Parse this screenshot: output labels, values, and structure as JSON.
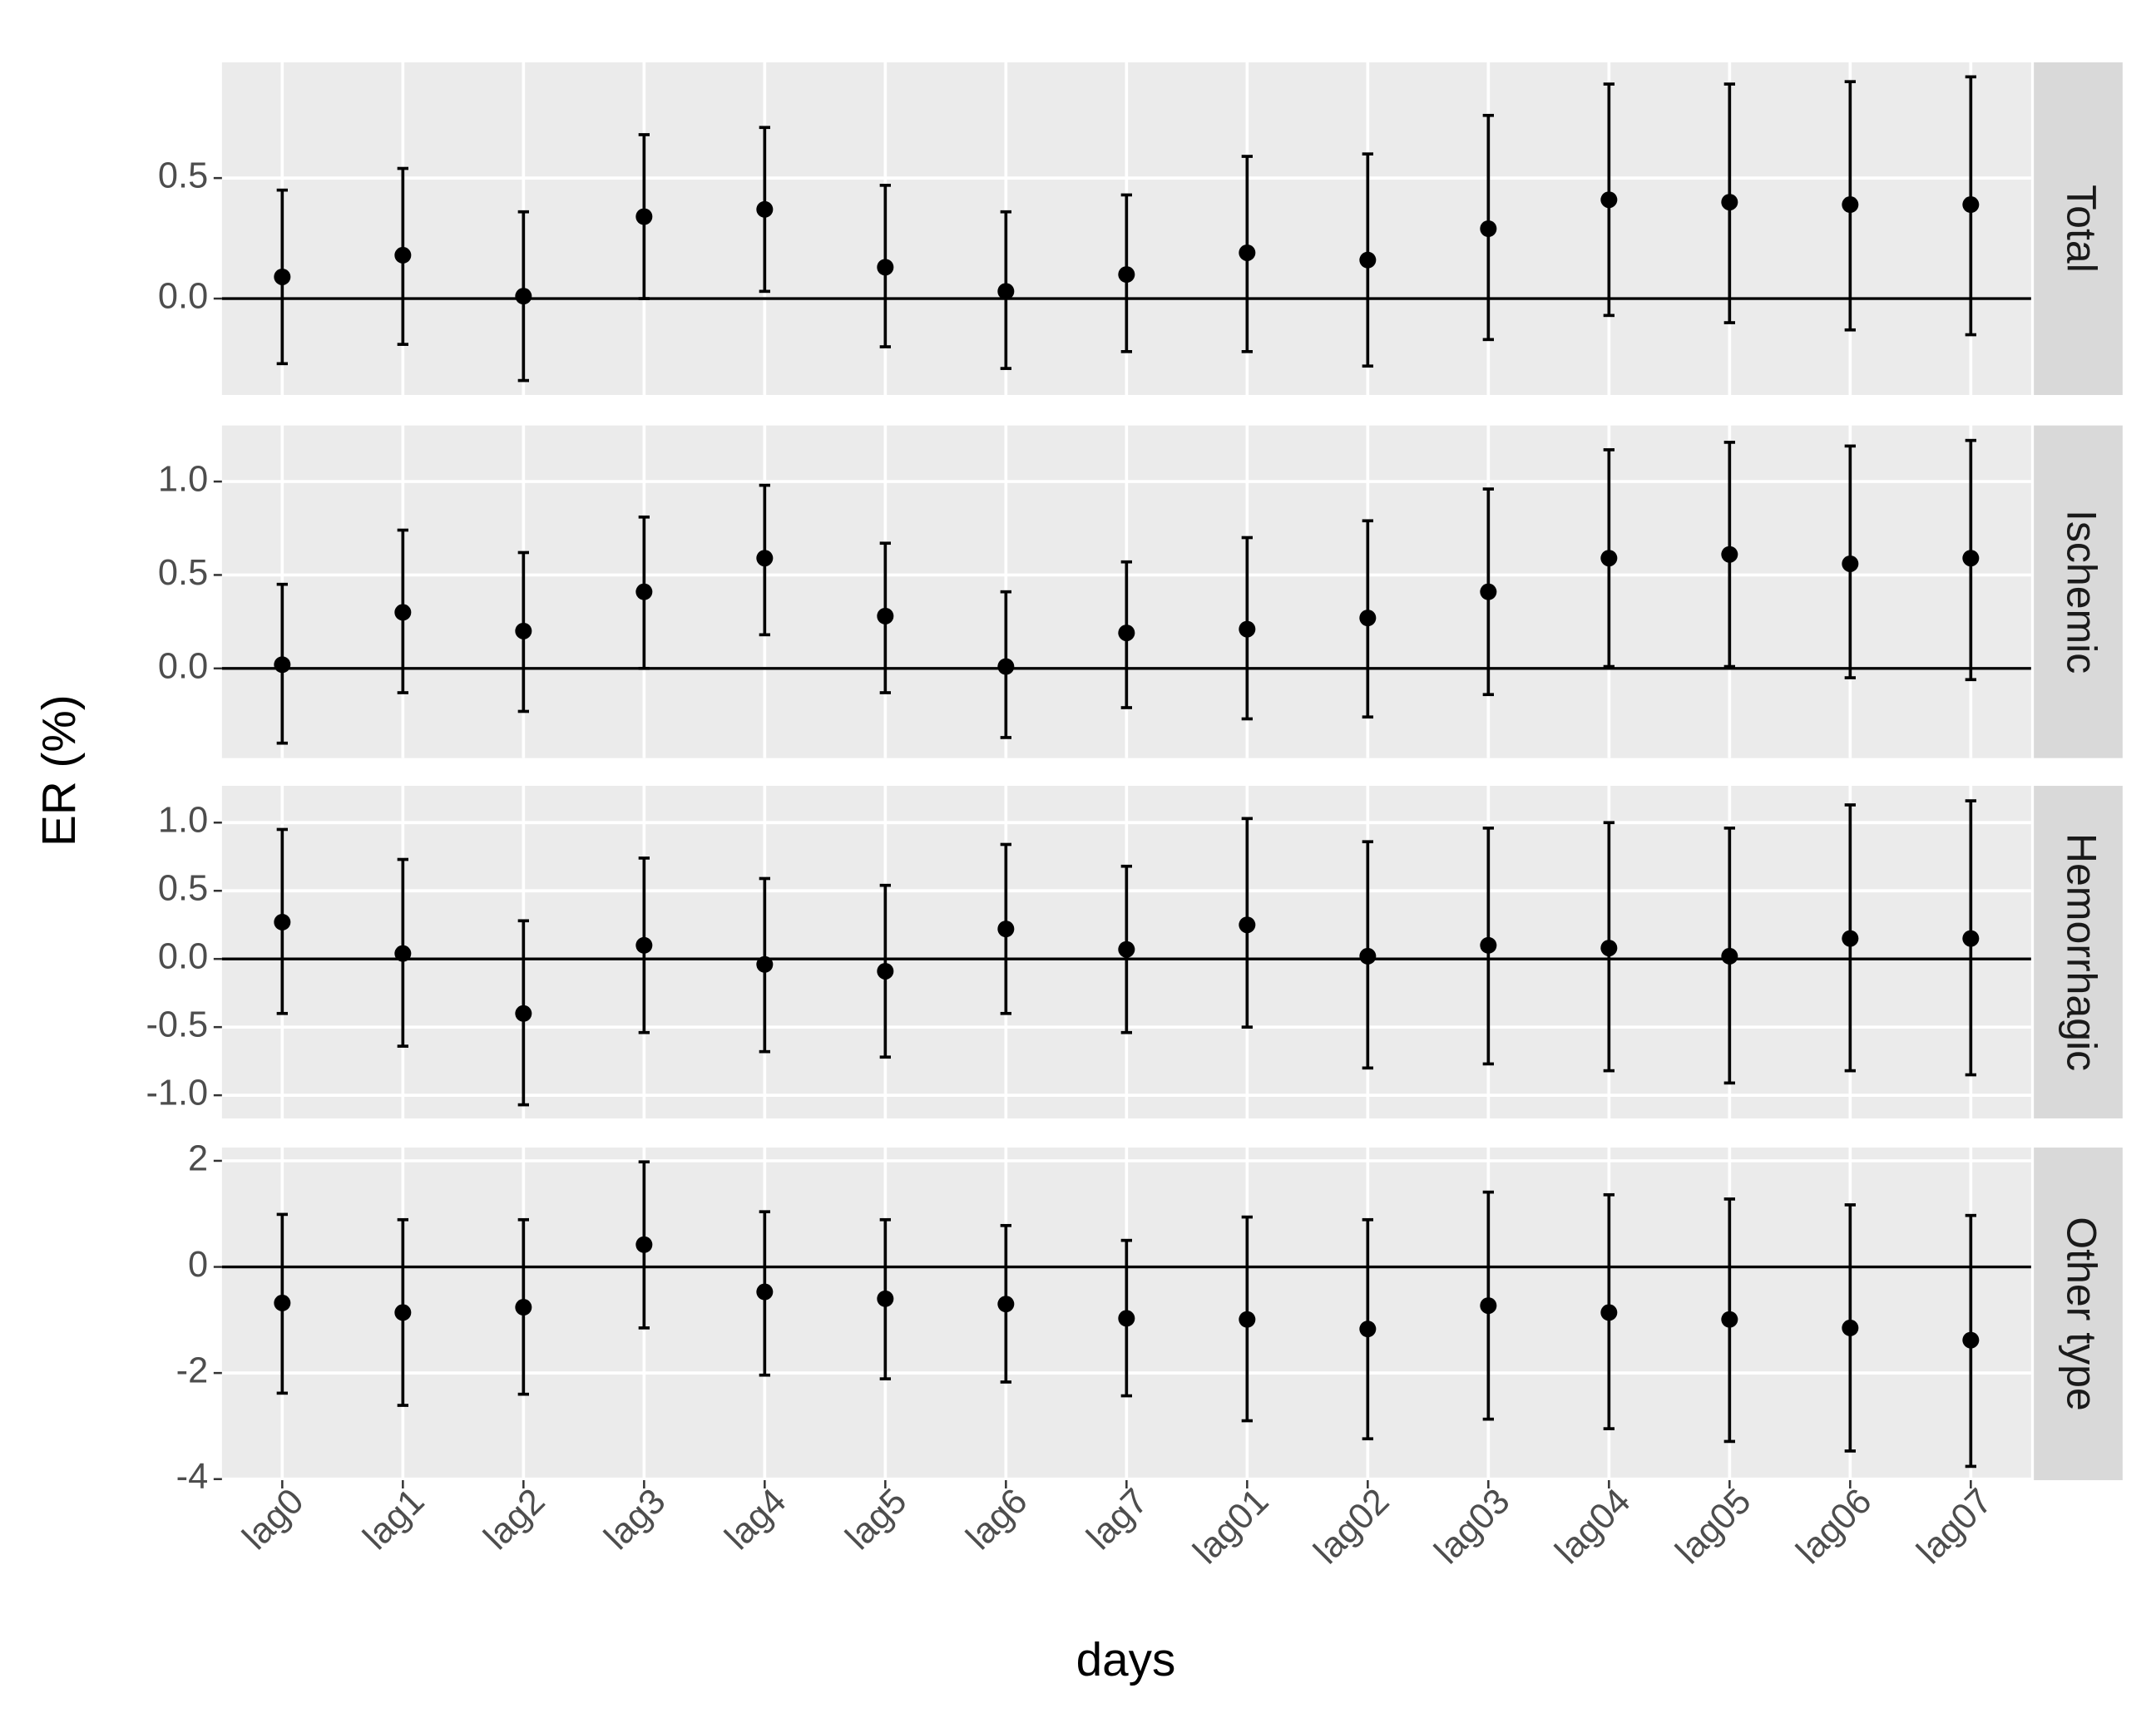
{
  "chart_data": {
    "type": "errorbar",
    "xlabel": "days",
    "ylabel": "ER (%)",
    "color": "#000000",
    "hline": 0,
    "grid": true,
    "categories": [
      "lag0",
      "lag1",
      "lag2",
      "lag3",
      "lag4",
      "lag5",
      "lag6",
      "lag7",
      "lag01",
      "lag02",
      "lag03",
      "lag04",
      "lag05",
      "lag06",
      "lag07"
    ],
    "facets": [
      {
        "strip": "Total",
        "ylim": [
          -0.4,
          0.98
        ],
        "yticks": [
          {
            "value": 0,
            "label": "0.0"
          },
          {
            "value": 0.5,
            "label": "0.5"
          }
        ],
        "values": [
          0.09,
          0.18,
          0.01,
          0.34,
          0.37,
          0.13,
          0.03,
          0.1,
          0.19,
          0.16,
          0.29,
          0.41,
          0.4,
          0.39,
          0.39
        ],
        "lower": [
          -0.27,
          -0.19,
          -0.34,
          0.0,
          0.03,
          -0.2,
          -0.29,
          -0.22,
          -0.22,
          -0.28,
          -0.17,
          -0.07,
          -0.1,
          -0.13,
          -0.15
        ],
        "upper": [
          0.45,
          0.54,
          0.36,
          0.68,
          0.71,
          0.47,
          0.36,
          0.43,
          0.59,
          0.6,
          0.76,
          0.89,
          0.89,
          0.9,
          0.92
        ]
      },
      {
        "strip": "Ischemic",
        "ylim": [
          -0.48,
          1.3
        ],
        "yticks": [
          {
            "value": 0,
            "label": "0.0"
          },
          {
            "value": 0.5,
            "label": "0.5"
          },
          {
            "value": 1,
            "label": "1.0"
          }
        ],
        "values": [
          0.02,
          0.3,
          0.2,
          0.41,
          0.59,
          0.28,
          0.01,
          0.19,
          0.21,
          0.27,
          0.41,
          0.59,
          0.61,
          0.56,
          0.59
        ],
        "lower": [
          -0.4,
          -0.13,
          -0.23,
          0.0,
          0.18,
          -0.13,
          -0.37,
          -0.21,
          -0.27,
          -0.26,
          -0.14,
          0.01,
          0.01,
          -0.05,
          -0.06
        ],
        "upper": [
          0.45,
          0.74,
          0.62,
          0.81,
          0.98,
          0.67,
          0.41,
          0.57,
          0.7,
          0.79,
          0.96,
          1.17,
          1.21,
          1.19,
          1.22
        ]
      },
      {
        "strip": "Hemorrhagic",
        "ylim": [
          -1.17,
          1.27
        ],
        "yticks": [
          {
            "value": -1,
            "label": "-1.0"
          },
          {
            "value": -0.5,
            "label": "-0.5"
          },
          {
            "value": 0,
            "label": "0.0"
          },
          {
            "value": 0.5,
            "label": "0.5"
          },
          {
            "value": 1,
            "label": "1.0"
          }
        ],
        "values": [
          0.27,
          0.04,
          -0.4,
          0.1,
          -0.04,
          -0.09,
          0.22,
          0.07,
          0.25,
          0.02,
          0.1,
          0.08,
          0.02,
          0.15,
          0.15
        ],
        "lower": [
          -0.4,
          -0.64,
          -1.07,
          -0.54,
          -0.68,
          -0.72,
          -0.4,
          -0.54,
          -0.5,
          -0.8,
          -0.77,
          -0.82,
          -0.91,
          -0.82,
          -0.85
        ],
        "upper": [
          0.95,
          0.73,
          0.28,
          0.74,
          0.59,
          0.54,
          0.84,
          0.68,
          1.03,
          0.86,
          0.96,
          1.0,
          0.96,
          1.13,
          1.16
        ]
      },
      {
        "strip": "Other type",
        "ylim": [
          -4.02,
          2.25
        ],
        "yticks": [
          -4,
          -2,
          0,
          2
        ],
        "values": [
          -0.68,
          -0.86,
          -0.76,
          0.42,
          -0.47,
          -0.6,
          -0.7,
          -0.97,
          -0.99,
          -1.17,
          -0.73,
          -0.86,
          -0.99,
          -1.15,
          -1.38
        ],
        "lower": [
          -2.38,
          -2.61,
          -2.4,
          -1.15,
          -2.04,
          -2.11,
          -2.17,
          -2.43,
          -2.9,
          -3.24,
          -2.87,
          -3.05,
          -3.29,
          -3.47,
          -3.76
        ],
        "upper": [
          0.99,
          0.89,
          0.89,
          1.98,
          1.04,
          0.89,
          0.78,
          0.5,
          0.94,
          0.89,
          1.41,
          1.36,
          1.28,
          1.17,
          0.97
        ]
      }
    ]
  }
}
